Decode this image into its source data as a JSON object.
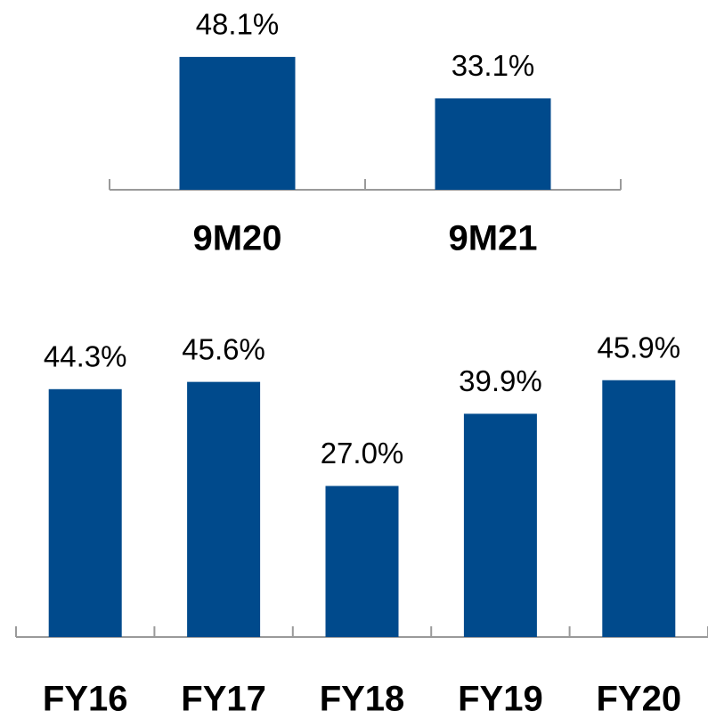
{
  "chart_data": [
    {
      "type": "bar",
      "categories": [
        "9M20",
        "9M21"
      ],
      "values": [
        48.1,
        33.1
      ],
      "value_labels": [
        "48.1%",
        "33.1%"
      ],
      "color": "#004a8c"
    },
    {
      "type": "bar",
      "categories": [
        "FY16",
        "FY17",
        "FY18",
        "FY19",
        "FY20"
      ],
      "values": [
        44.3,
        45.6,
        27.0,
        39.9,
        45.9
      ],
      "value_labels": [
        "44.3%",
        "45.6%",
        "27.0%",
        "39.9%",
        "45.9%"
      ],
      "color": "#004a8c"
    }
  ]
}
